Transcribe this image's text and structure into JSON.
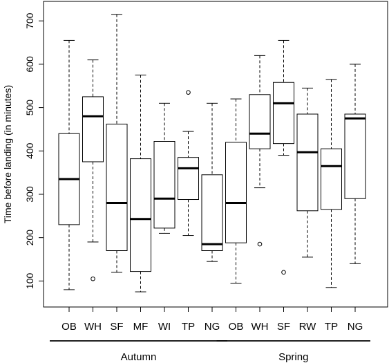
{
  "chart_data": {
    "type": "boxplot",
    "ylabel": "Time before landing (in minutes)",
    "ylim": [
      40,
      745
    ],
    "yticks": [
      100,
      200,
      300,
      400,
      500,
      600,
      700
    ],
    "grid": false,
    "groups": [
      {
        "name": "Autumn",
        "categories": [
          "OB",
          "WH",
          "SF",
          "MF",
          "WI",
          "TP",
          "NG"
        ]
      },
      {
        "name": "Spring",
        "categories": [
          "OB",
          "WH",
          "SF",
          "RW",
          "TP",
          "NG"
        ]
      }
    ],
    "boxes": [
      {
        "group": "Autumn",
        "label": "OB",
        "min": 80,
        "q1": 230,
        "median": 335,
        "q3": 440,
        "max": 655,
        "outliers": []
      },
      {
        "group": "Autumn",
        "label": "WH",
        "min": 190,
        "q1": 375,
        "median": 480,
        "q3": 525,
        "max": 610,
        "outliers": [
          105
        ]
      },
      {
        "group": "Autumn",
        "label": "SF",
        "min": 120,
        "q1": 170,
        "median": 280,
        "q3": 462,
        "max": 715,
        "outliers": []
      },
      {
        "group": "Autumn",
        "label": "MF",
        "min": 75,
        "q1": 122,
        "median": 243,
        "q3": 382,
        "max": 575,
        "outliers": []
      },
      {
        "group": "Autumn",
        "label": "WI",
        "min": 210,
        "q1": 222,
        "median": 290,
        "q3": 422,
        "max": 510,
        "outliers": []
      },
      {
        "group": "Autumn",
        "label": "TP",
        "min": 205,
        "q1": 288,
        "median": 360,
        "q3": 385,
        "max": 445,
        "outliers": [
          535
        ]
      },
      {
        "group": "Autumn",
        "label": "NG",
        "min": 145,
        "q1": 170,
        "median": 185,
        "q3": 345,
        "max": 510,
        "outliers": []
      },
      {
        "group": "Spring",
        "label": "OB",
        "min": 95,
        "q1": 188,
        "median": 280,
        "q3": 420,
        "max": 520,
        "outliers": []
      },
      {
        "group": "Spring",
        "label": "WH",
        "min": 315,
        "q1": 405,
        "median": 440,
        "q3": 530,
        "max": 620,
        "outliers": [
          185
        ]
      },
      {
        "group": "Spring",
        "label": "SF",
        "min": 390,
        "q1": 417,
        "median": 510,
        "q3": 558,
        "max": 655,
        "outliers": [
          120
        ]
      },
      {
        "group": "Spring",
        "label": "RW",
        "min": 155,
        "q1": 262,
        "median": 397,
        "q3": 485,
        "max": 545,
        "outliers": []
      },
      {
        "group": "Spring",
        "label": "TP",
        "min": 85,
        "q1": 265,
        "median": 365,
        "q3": 405,
        "max": 565,
        "outliers": []
      },
      {
        "group": "Spring",
        "label": "NG",
        "min": 140,
        "q1": 290,
        "median": 475,
        "q3": 485,
        "max": 600,
        "outliers": []
      }
    ]
  }
}
